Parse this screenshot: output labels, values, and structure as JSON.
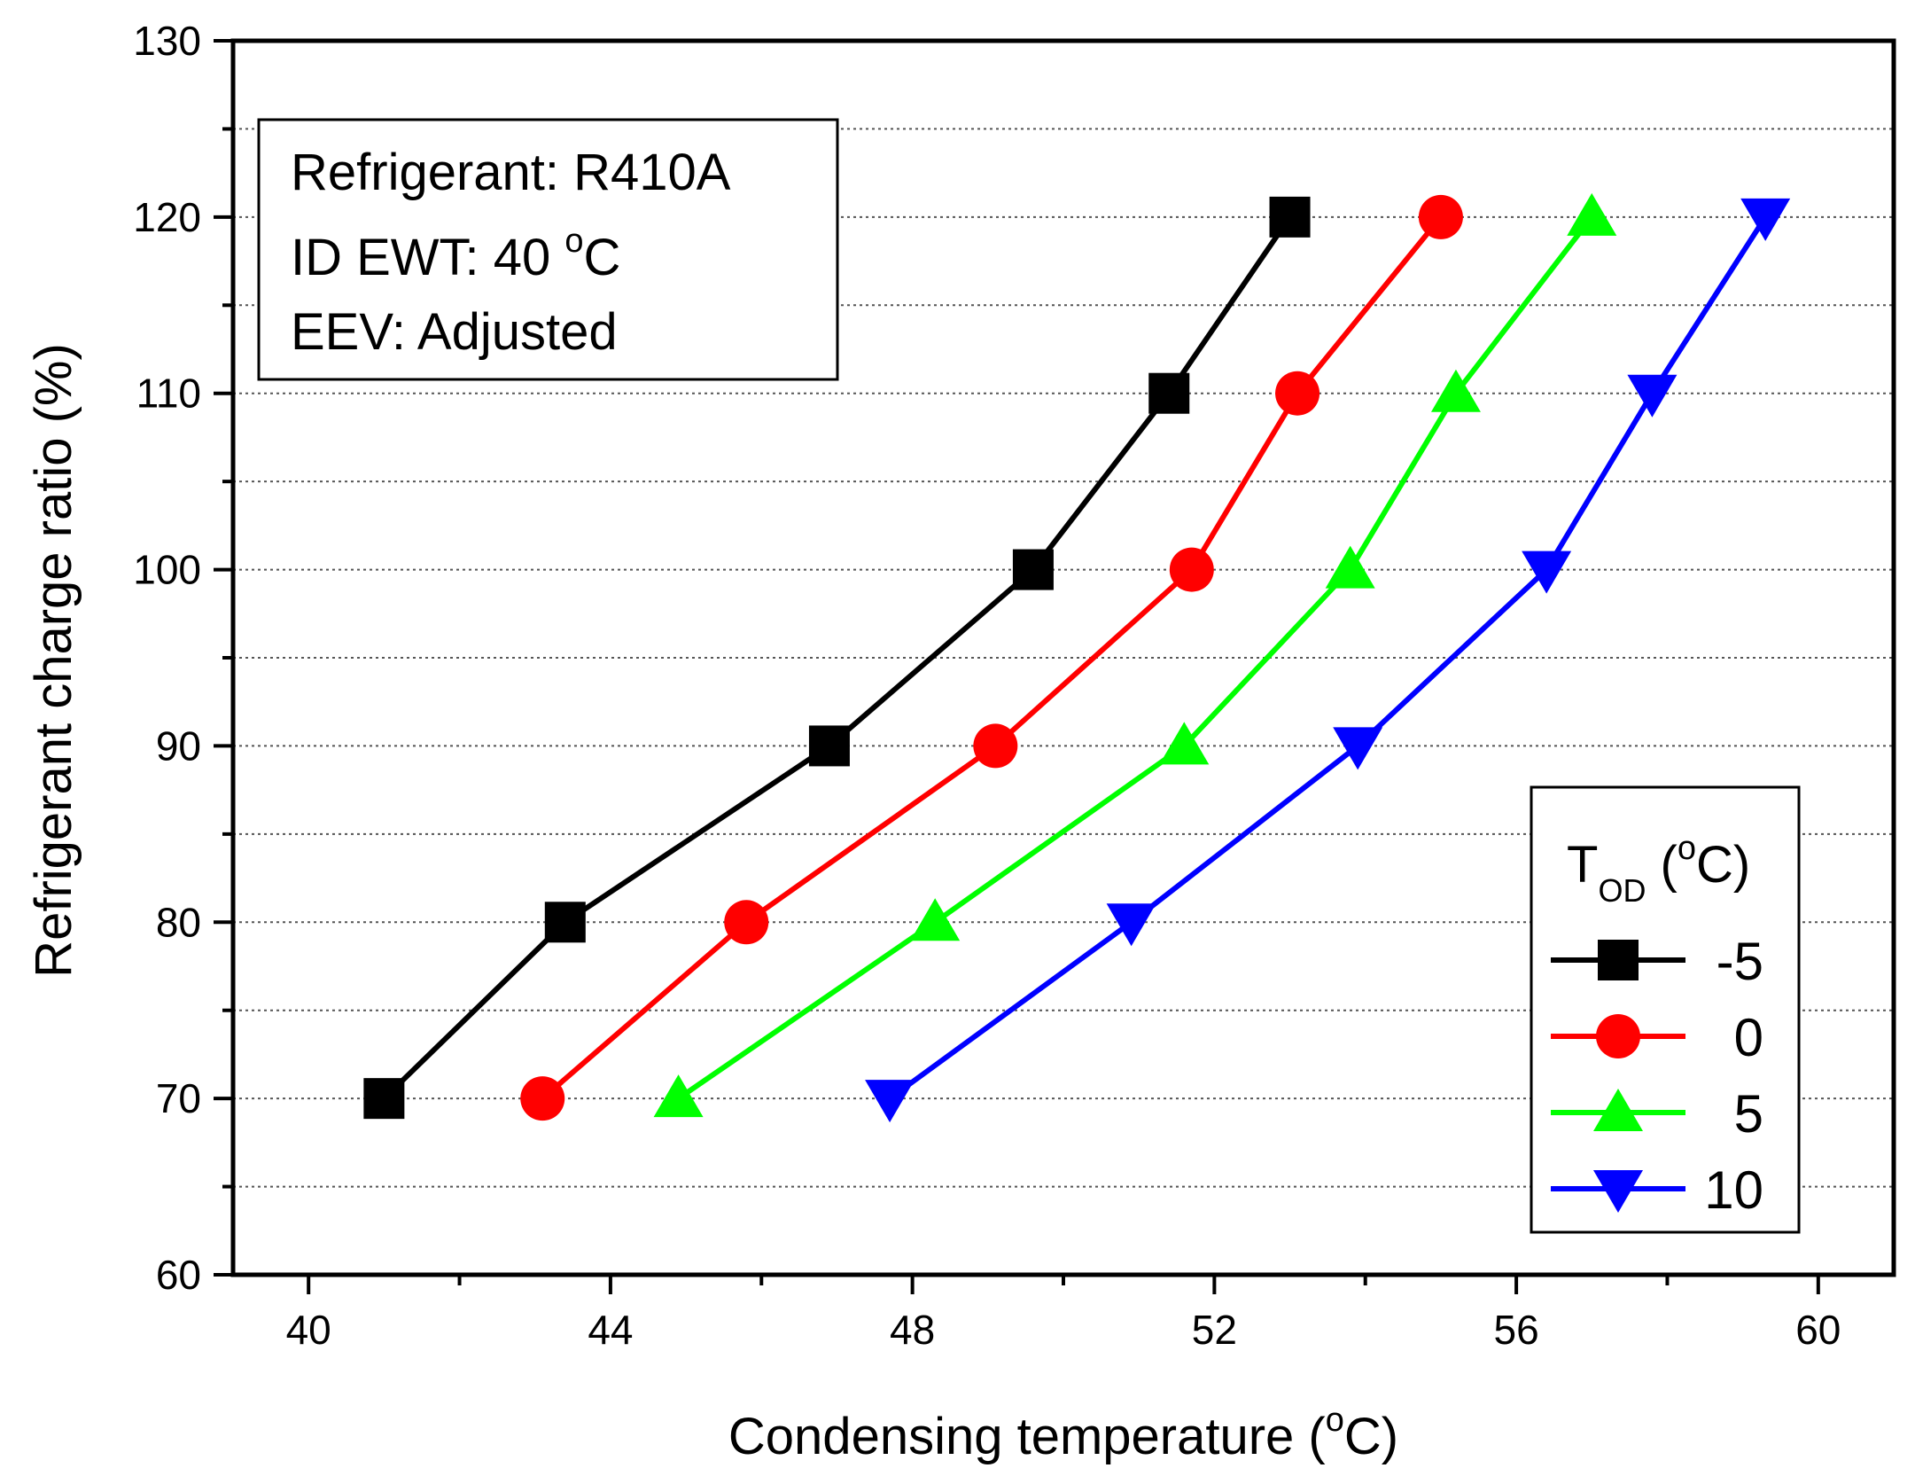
{
  "chart_data": {
    "type": "line",
    "xlabel": "Condensing temperature",
    "xlabel_unit": {
      "open": " (",
      "sup": "o",
      "close": "C)"
    },
    "ylabel": "Refrigerant charge ratio (%)",
    "xlim": [
      39,
      61
    ],
    "ylim": [
      60,
      130
    ],
    "xticks": [
      40,
      44,
      48,
      52,
      56,
      60
    ],
    "yticks": [
      60,
      70,
      80,
      90,
      100,
      110,
      120,
      130
    ],
    "grid": "horizontal dotted",
    "annotation": {
      "line1": "Refrigerant: R410A",
      "line2_prefix": "ID EWT: 40 ",
      "line2_sup": "o",
      "line2_suffix": "C",
      "line3": "EEV: Adjusted"
    },
    "legend": {
      "title_main": "T",
      "title_sub": "OD",
      "title_unit": " (",
      "title_sup": "o",
      "title_close": "C)",
      "position": "bottom-right"
    },
    "series": [
      {
        "name": "-5",
        "color": "#000000",
        "marker": "square",
        "points": [
          [
            41.0,
            70
          ],
          [
            43.4,
            80
          ],
          [
            46.9,
            90
          ],
          [
            49.6,
            100
          ],
          [
            51.4,
            110
          ],
          [
            53.0,
            120
          ]
        ]
      },
      {
        "name": "0",
        "color": "#ff0000",
        "marker": "circle",
        "points": [
          [
            43.1,
            70
          ],
          [
            45.8,
            80
          ],
          [
            49.1,
            90
          ],
          [
            51.7,
            100
          ],
          [
            53.1,
            110
          ],
          [
            55.0,
            120
          ]
        ]
      },
      {
        "name": "5",
        "color": "#00ff00",
        "marker": "triangle-up",
        "points": [
          [
            44.9,
            70
          ],
          [
            48.3,
            80
          ],
          [
            51.6,
            90
          ],
          [
            53.8,
            100
          ],
          [
            55.2,
            110
          ],
          [
            57.0,
            120
          ]
        ]
      },
      {
        "name": "10",
        "color": "#0000ff",
        "marker": "triangle-down",
        "points": [
          [
            47.7,
            70
          ],
          [
            50.9,
            80
          ],
          [
            53.9,
            90
          ],
          [
            56.4,
            100
          ],
          [
            57.8,
            110
          ],
          [
            59.3,
            120
          ]
        ]
      }
    ]
  }
}
